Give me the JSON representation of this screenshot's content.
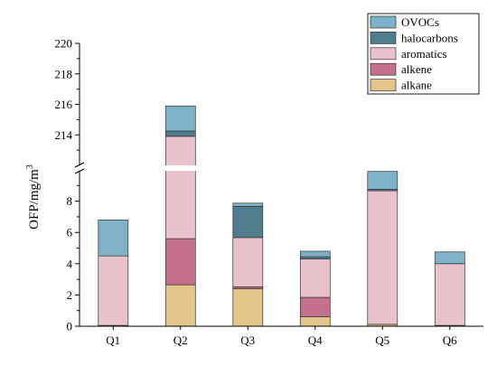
{
  "chart_data": {
    "type": "bar",
    "stacked": true,
    "axis_break": true,
    "ylabel": "OFP/mg/m",
    "ylabel_sup": "3",
    "xlabel": "",
    "categories": [
      "Q1",
      "Q2",
      "Q3",
      "Q4",
      "Q5",
      "Q6"
    ],
    "ylim_lower": [
      0,
      10
    ],
    "ylim_upper": [
      212,
      220
    ],
    "yticks_lower": [
      "0",
      "2",
      "4",
      "6",
      "8"
    ],
    "yticks_upper": [
      "214",
      "216",
      "218",
      "220"
    ],
    "legend_position": "top-right",
    "series": [
      {
        "name": "alkane",
        "color": "#e3c489",
        "values": [
          0.05,
          2.65,
          2.4,
          0.6,
          0.12,
          0.05
        ]
      },
      {
        "name": "alkene",
        "color": "#c2708e",
        "values": [
          0.0,
          2.95,
          0.12,
          1.25,
          0.0,
          0.0
        ]
      },
      {
        "name": "aromatics",
        "color": "#e8c3cc",
        "values": [
          4.45,
          208.3,
          3.15,
          2.45,
          8.55,
          3.95
        ]
      },
      {
        "name": "halocarbons",
        "color": "#4f7d8e",
        "values": [
          0.0,
          0.35,
          2.0,
          0.15,
          0.08,
          0.0
        ]
      },
      {
        "name": "OVOCs",
        "color": "#7fb2c9",
        "values": [
          2.3,
          1.65,
          0.2,
          0.35,
          1.15,
          0.75
        ]
      }
    ]
  }
}
